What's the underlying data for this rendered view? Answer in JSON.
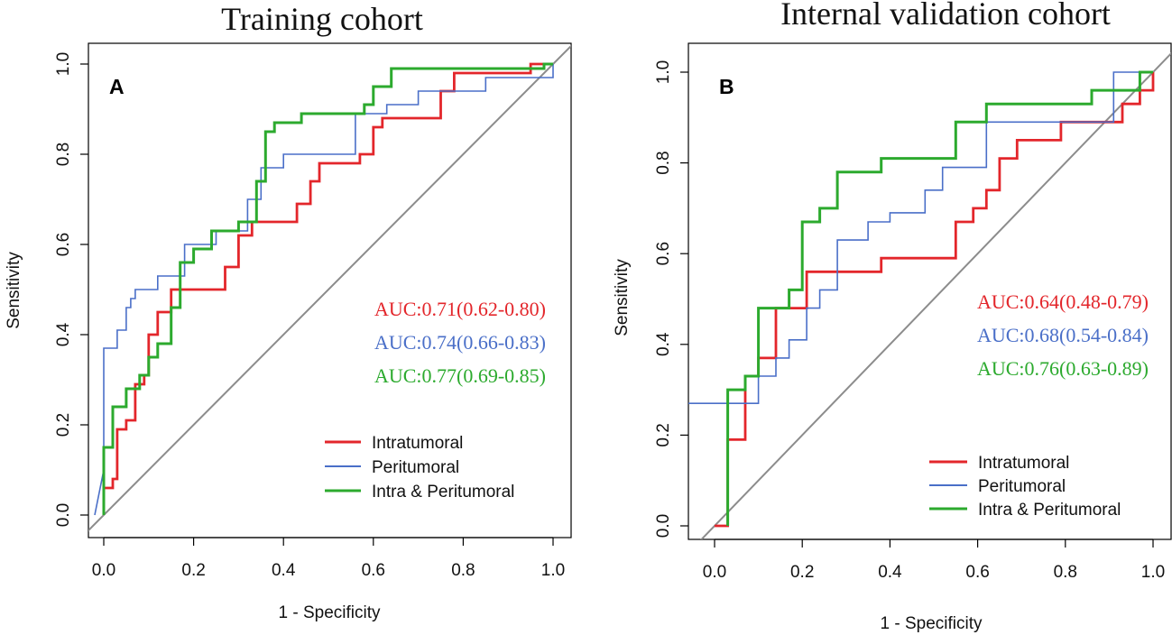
{
  "chart_data": [
    {
      "type": "line",
      "panel": "A",
      "title": "Training cohort",
      "xlabel": "1 - Specificity",
      "ylabel": "Sensitivity",
      "xlim": [
        0,
        1
      ],
      "ylim": [
        0,
        1
      ],
      "ticks": [
        0.0,
        0.2,
        0.4,
        0.6,
        0.8,
        1.0
      ],
      "tick_labels": [
        "0.0",
        "0.2",
        "0.4",
        "0.6",
        "0.8",
        "1.0"
      ],
      "diagonal": true,
      "legend_position": "bottom-right",
      "series": [
        {
          "name": "Intratumoral",
          "color": "#e3262b",
          "auc": "AUC:0.71(0.62-0.80)",
          "points": [
            [
              0,
              0
            ],
            [
              0,
              0.06
            ],
            [
              0.02,
              0.06
            ],
            [
              0.02,
              0.08
            ],
            [
              0.03,
              0.08
            ],
            [
              0.03,
              0.19
            ],
            [
              0.05,
              0.19
            ],
            [
              0.05,
              0.21
            ],
            [
              0.07,
              0.21
            ],
            [
              0.07,
              0.29
            ],
            [
              0.09,
              0.29
            ],
            [
              0.09,
              0.31
            ],
            [
              0.1,
              0.31
            ],
            [
              0.1,
              0.4
            ],
            [
              0.12,
              0.4
            ],
            [
              0.12,
              0.45
            ],
            [
              0.15,
              0.45
            ],
            [
              0.15,
              0.5
            ],
            [
              0.27,
              0.5
            ],
            [
              0.27,
              0.55
            ],
            [
              0.3,
              0.55
            ],
            [
              0.3,
              0.62
            ],
            [
              0.33,
              0.62
            ],
            [
              0.33,
              0.65
            ],
            [
              0.43,
              0.65
            ],
            [
              0.43,
              0.69
            ],
            [
              0.46,
              0.69
            ],
            [
              0.46,
              0.74
            ],
            [
              0.48,
              0.74
            ],
            [
              0.48,
              0.78
            ],
            [
              0.57,
              0.78
            ],
            [
              0.57,
              0.8
            ],
            [
              0.6,
              0.8
            ],
            [
              0.6,
              0.86
            ],
            [
              0.62,
              0.86
            ],
            [
              0.62,
              0.88
            ],
            [
              0.75,
              0.88
            ],
            [
              0.75,
              0.94
            ],
            [
              0.78,
              0.94
            ],
            [
              0.78,
              0.98
            ],
            [
              0.95,
              0.98
            ],
            [
              0.95,
              1.0
            ],
            [
              1.0,
              1.0
            ]
          ]
        },
        {
          "name": "Peritumoral",
          "color": "#4a6fc8",
          "auc": "AUC:0.74(0.66-0.83)",
          "points": [
            [
              -0.02,
              0
            ],
            [
              0,
              0.1
            ],
            [
              0,
              0.37
            ],
            [
              0.03,
              0.37
            ],
            [
              0.03,
              0.41
            ],
            [
              0.05,
              0.41
            ],
            [
              0.05,
              0.46
            ],
            [
              0.06,
              0.46
            ],
            [
              0.06,
              0.48
            ],
            [
              0.07,
              0.48
            ],
            [
              0.07,
              0.5
            ],
            [
              0.12,
              0.5
            ],
            [
              0.12,
              0.53
            ],
            [
              0.18,
              0.53
            ],
            [
              0.18,
              0.6
            ],
            [
              0.25,
              0.6
            ],
            [
              0.25,
              0.63
            ],
            [
              0.32,
              0.63
            ],
            [
              0.32,
              0.7
            ],
            [
              0.35,
              0.7
            ],
            [
              0.35,
              0.77
            ],
            [
              0.4,
              0.77
            ],
            [
              0.4,
              0.8
            ],
            [
              0.56,
              0.8
            ],
            [
              0.56,
              0.89
            ],
            [
              0.63,
              0.89
            ],
            [
              0.63,
              0.91
            ],
            [
              0.7,
              0.91
            ],
            [
              0.7,
              0.94
            ],
            [
              0.85,
              0.94
            ],
            [
              0.85,
              0.97
            ],
            [
              1.0,
              0.97
            ],
            [
              1.0,
              1.0
            ]
          ]
        },
        {
          "name": "Intra & Peritumoral",
          "color": "#2caa2e",
          "auc": "AUC:0.77(0.69-0.85)",
          "points": [
            [
              0,
              0
            ],
            [
              0,
              0.15
            ],
            [
              0.02,
              0.15
            ],
            [
              0.02,
              0.24
            ],
            [
              0.05,
              0.24
            ],
            [
              0.05,
              0.28
            ],
            [
              0.08,
              0.28
            ],
            [
              0.08,
              0.31
            ],
            [
              0.1,
              0.31
            ],
            [
              0.1,
              0.35
            ],
            [
              0.12,
              0.35
            ],
            [
              0.12,
              0.38
            ],
            [
              0.15,
              0.38
            ],
            [
              0.15,
              0.46
            ],
            [
              0.17,
              0.46
            ],
            [
              0.17,
              0.56
            ],
            [
              0.2,
              0.56
            ],
            [
              0.2,
              0.59
            ],
            [
              0.24,
              0.59
            ],
            [
              0.24,
              0.63
            ],
            [
              0.3,
              0.63
            ],
            [
              0.3,
              0.65
            ],
            [
              0.34,
              0.65
            ],
            [
              0.34,
              0.74
            ],
            [
              0.36,
              0.74
            ],
            [
              0.36,
              0.85
            ],
            [
              0.38,
              0.85
            ],
            [
              0.38,
              0.87
            ],
            [
              0.44,
              0.87
            ],
            [
              0.44,
              0.89
            ],
            [
              0.58,
              0.89
            ],
            [
              0.58,
              0.91
            ],
            [
              0.6,
              0.91
            ],
            [
              0.6,
              0.95
            ],
            [
              0.64,
              0.95
            ],
            [
              0.64,
              0.99
            ],
            [
              0.98,
              0.99
            ],
            [
              0.98,
              1.0
            ],
            [
              1.0,
              1.0
            ]
          ]
        }
      ]
    },
    {
      "type": "line",
      "panel": "B",
      "title": "Internal validation cohort",
      "xlabel": "1 - Specificity",
      "ylabel": "Sensitivity",
      "xlim": [
        0,
        1
      ],
      "ylim": [
        0,
        1
      ],
      "ticks": [
        0.0,
        0.2,
        0.4,
        0.6,
        0.8,
        1.0
      ],
      "tick_labels": [
        "0.0",
        "0.2",
        "0.4",
        "0.6",
        "0.8",
        "1.0"
      ],
      "diagonal": true,
      "legend_position": "bottom-right",
      "series": [
        {
          "name": "Intratumoral",
          "color": "#e3262b",
          "auc": "AUC:0.64(0.48-0.79)",
          "points": [
            [
              0,
              0
            ],
            [
              0.03,
              0
            ],
            [
              0.03,
              0.19
            ],
            [
              0.07,
              0.19
            ],
            [
              0.07,
              0.33
            ],
            [
              0.1,
              0.33
            ],
            [
              0.1,
              0.37
            ],
            [
              0.14,
              0.37
            ],
            [
              0.14,
              0.48
            ],
            [
              0.21,
              0.48
            ],
            [
              0.21,
              0.56
            ],
            [
              0.38,
              0.56
            ],
            [
              0.38,
              0.59
            ],
            [
              0.55,
              0.59
            ],
            [
              0.55,
              0.67
            ],
            [
              0.59,
              0.67
            ],
            [
              0.59,
              0.7
            ],
            [
              0.62,
              0.7
            ],
            [
              0.62,
              0.74
            ],
            [
              0.65,
              0.74
            ],
            [
              0.65,
              0.81
            ],
            [
              0.69,
              0.81
            ],
            [
              0.69,
              0.85
            ],
            [
              0.79,
              0.85
            ],
            [
              0.79,
              0.89
            ],
            [
              0.93,
              0.89
            ],
            [
              0.93,
              0.93
            ],
            [
              0.97,
              0.93
            ],
            [
              0.97,
              0.96
            ],
            [
              1.0,
              0.96
            ],
            [
              1.0,
              1.0
            ]
          ]
        },
        {
          "name": "Peritumoral",
          "color": "#4a6fc8",
          "auc": "AUC:0.68(0.54-0.84)",
          "points": [
            [
              -0.1,
              0.27
            ],
            [
              0.1,
              0.27
            ],
            [
              0.1,
              0.33
            ],
            [
              0.14,
              0.33
            ],
            [
              0.14,
              0.37
            ],
            [
              0.17,
              0.37
            ],
            [
              0.17,
              0.41
            ],
            [
              0.21,
              0.41
            ],
            [
              0.21,
              0.48
            ],
            [
              0.24,
              0.48
            ],
            [
              0.24,
              0.52
            ],
            [
              0.28,
              0.52
            ],
            [
              0.28,
              0.63
            ],
            [
              0.35,
              0.63
            ],
            [
              0.35,
              0.67
            ],
            [
              0.4,
              0.67
            ],
            [
              0.4,
              0.69
            ],
            [
              0.48,
              0.69
            ],
            [
              0.48,
              0.74
            ],
            [
              0.52,
              0.74
            ],
            [
              0.52,
              0.79
            ],
            [
              0.62,
              0.79
            ],
            [
              0.62,
              0.89
            ],
            [
              0.91,
              0.89
            ],
            [
              0.91,
              1.0
            ],
            [
              1.0,
              1.0
            ]
          ]
        },
        {
          "name": "Intra & Peritumoral",
          "color": "#2caa2e",
          "auc": "AUC:0.76(0.63-0.89)",
          "points": [
            [
              0.03,
              0
            ],
            [
              0.03,
              0.3
            ],
            [
              0.07,
              0.3
            ],
            [
              0.07,
              0.33
            ],
            [
              0.1,
              0.33
            ],
            [
              0.1,
              0.48
            ],
            [
              0.17,
              0.48
            ],
            [
              0.17,
              0.52
            ],
            [
              0.2,
              0.52
            ],
            [
              0.2,
              0.67
            ],
            [
              0.24,
              0.67
            ],
            [
              0.24,
              0.7
            ],
            [
              0.28,
              0.7
            ],
            [
              0.28,
              0.78
            ],
            [
              0.38,
              0.78
            ],
            [
              0.38,
              0.81
            ],
            [
              0.55,
              0.81
            ],
            [
              0.55,
              0.89
            ],
            [
              0.62,
              0.89
            ],
            [
              0.62,
              0.93
            ],
            [
              0.86,
              0.93
            ],
            [
              0.86,
              0.96
            ],
            [
              0.97,
              0.96
            ],
            [
              0.97,
              1.0
            ],
            [
              1.0,
              1.0
            ]
          ]
        }
      ]
    }
  ]
}
